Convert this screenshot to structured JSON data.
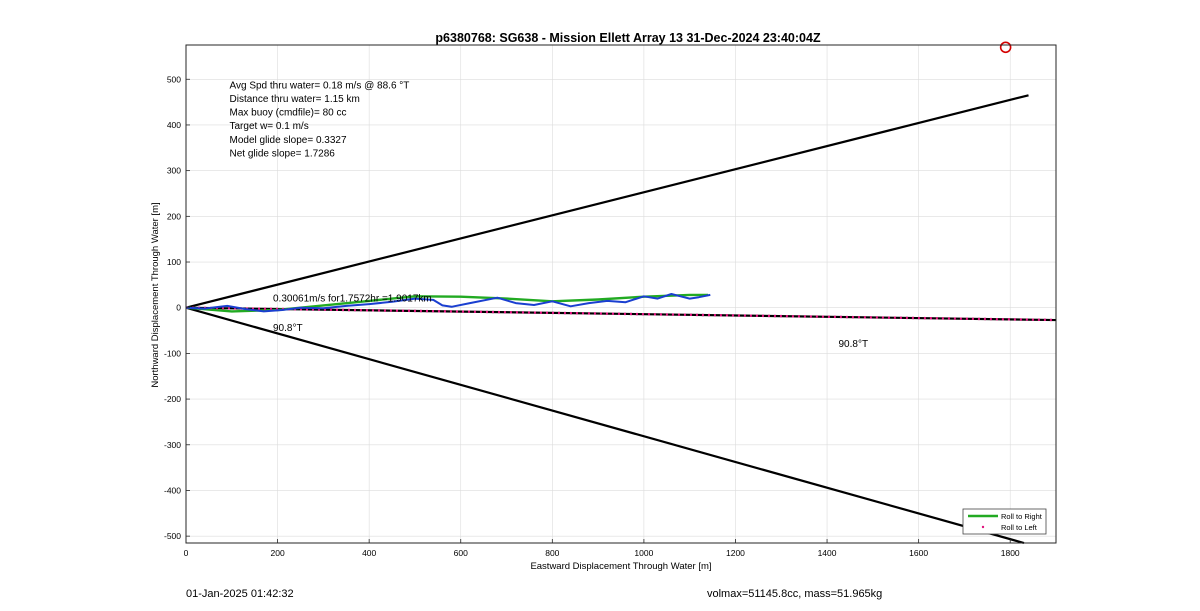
{
  "chart_data": {
    "type": "line",
    "title": "p6380768: SG638 - Mission Ellett Array 13 31-Dec-2024 23:40:04Z",
    "xlabel": "Eastward Displacement Through Water [m]",
    "ylabel": "Northward Displacement Through Water [m]",
    "xlim": [
      0,
      1900
    ],
    "ylim": [
      -515,
      575
    ],
    "xticks": [
      0,
      200,
      400,
      600,
      800,
      1000,
      1200,
      1400,
      1600,
      1800
    ],
    "yticks": [
      -500,
      -400,
      -300,
      -200,
      -100,
      0,
      100,
      200,
      300,
      400,
      500
    ],
    "grid": true,
    "legend_position": "bottom-right",
    "info_lines": [
      "Avg Spd thru water=  0.18 m/s @  88.6 °T",
      "Distance thru water=  1.15 km",
      "Max buoy (cmdfile)= 80 cc",
      "Target w= 0.1 m/s",
      "Model glide slope= 0.3327",
      "Net glide slope= 1.7286"
    ],
    "annotations": [
      {
        "text": "0.30061m/s for1.7572hr =1.9017km",
        "x": 190,
        "y": 22
      },
      {
        "text": "90.8°T",
        "x": 190,
        "y": -42
      },
      {
        "text": "90.8°T",
        "x": 1425,
        "y": -77
      }
    ],
    "cone_upper": {
      "x": [
        0,
        1840
      ],
      "y": [
        0,
        465
      ]
    },
    "cone_lower": {
      "x": [
        0,
        1830
      ],
      "y": [
        0,
        -515
      ]
    },
    "heading_line": {
      "x": [
        0,
        1900
      ],
      "y": [
        0,
        -27
      ]
    },
    "target_marker": {
      "x": 1790,
      "y": 570
    },
    "series": [
      {
        "name": "Roll to Right",
        "color": "#22aa22",
        "x": [
          0,
          100,
          200,
          300,
          400,
          500,
          600,
          700,
          800,
          900,
          1000,
          1100,
          1140
        ],
        "y": [
          0,
          -8,
          -5,
          5,
          15,
          25,
          24,
          20,
          14,
          18,
          24,
          28,
          28
        ]
      },
      {
        "name": "Roll to Left",
        "color": "#e0147e",
        "x": [
          0,
          1900
        ],
        "y": [
          0,
          -27
        ]
      },
      {
        "name": "",
        "color": "#1a3fd0",
        "x": [
          0,
          40,
          90,
          130,
          170,
          210,
          250,
          300,
          350,
          400,
          450,
          500,
          540,
          560,
          580,
          620,
          680,
          720,
          760,
          800,
          840,
          880,
          920,
          960,
          1000,
          1030,
          1060,
          1080,
          1100,
          1120,
          1145
        ],
        "y": [
          0,
          -2,
          4,
          -3,
          -8,
          -5,
          0,
          -1,
          4,
          8,
          13,
          20,
          17,
          5,
          2,
          10,
          22,
          10,
          6,
          14,
          3,
          10,
          15,
          12,
          25,
          20,
          30,
          25,
          20,
          23,
          28
        ]
      }
    ]
  },
  "footer": {
    "timestamp": "01-Jan-2025 01:42:32",
    "vol_mass": "volmax=51145.8cc, mass=51.965kg"
  }
}
